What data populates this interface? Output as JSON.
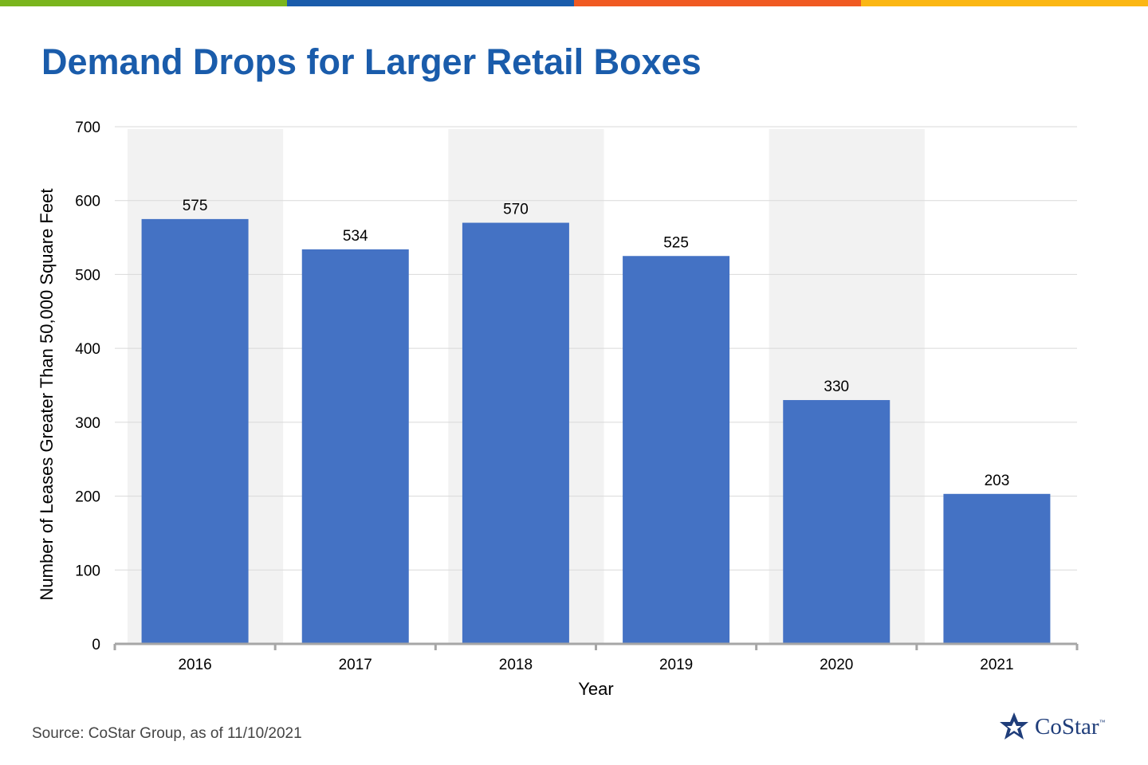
{
  "header": {
    "title": "Demand Drops for Larger Retail Boxes",
    "bar_colors": [
      "#7ab51d",
      "#1a5cab",
      "#f05a22",
      "#fbb714"
    ]
  },
  "chart_data": {
    "type": "bar",
    "title": "Demand Drops for Larger Retail Boxes",
    "categories": [
      "2016",
      "2017",
      "2018",
      "2019",
      "2020",
      "2021"
    ],
    "values": [
      575,
      534,
      570,
      525,
      330,
      203
    ],
    "data_labels": [
      "575",
      "534",
      "570",
      "525",
      "330",
      "203"
    ],
    "xlabel": "Year",
    "ylabel": "Number of Leases Greater Than 50,000 Square Feet",
    "ylim": [
      0,
      700
    ],
    "yticks": [
      "0",
      "100",
      "200",
      "300",
      "400",
      "500",
      "600",
      "700"
    ],
    "grid": true,
    "legend": "none",
    "shaded_categories": [
      "2016",
      "2018",
      "2020"
    ],
    "bar_color": "#4472c4",
    "shade_color": "#f2f2f2"
  },
  "footer": {
    "source": "Source: CoStar Group, as of 11/10/2021",
    "logo_text": "CoStar",
    "logo_tm": "™",
    "logo_icon": "costar-star-icon",
    "logo_color": "#1f3d7a"
  }
}
